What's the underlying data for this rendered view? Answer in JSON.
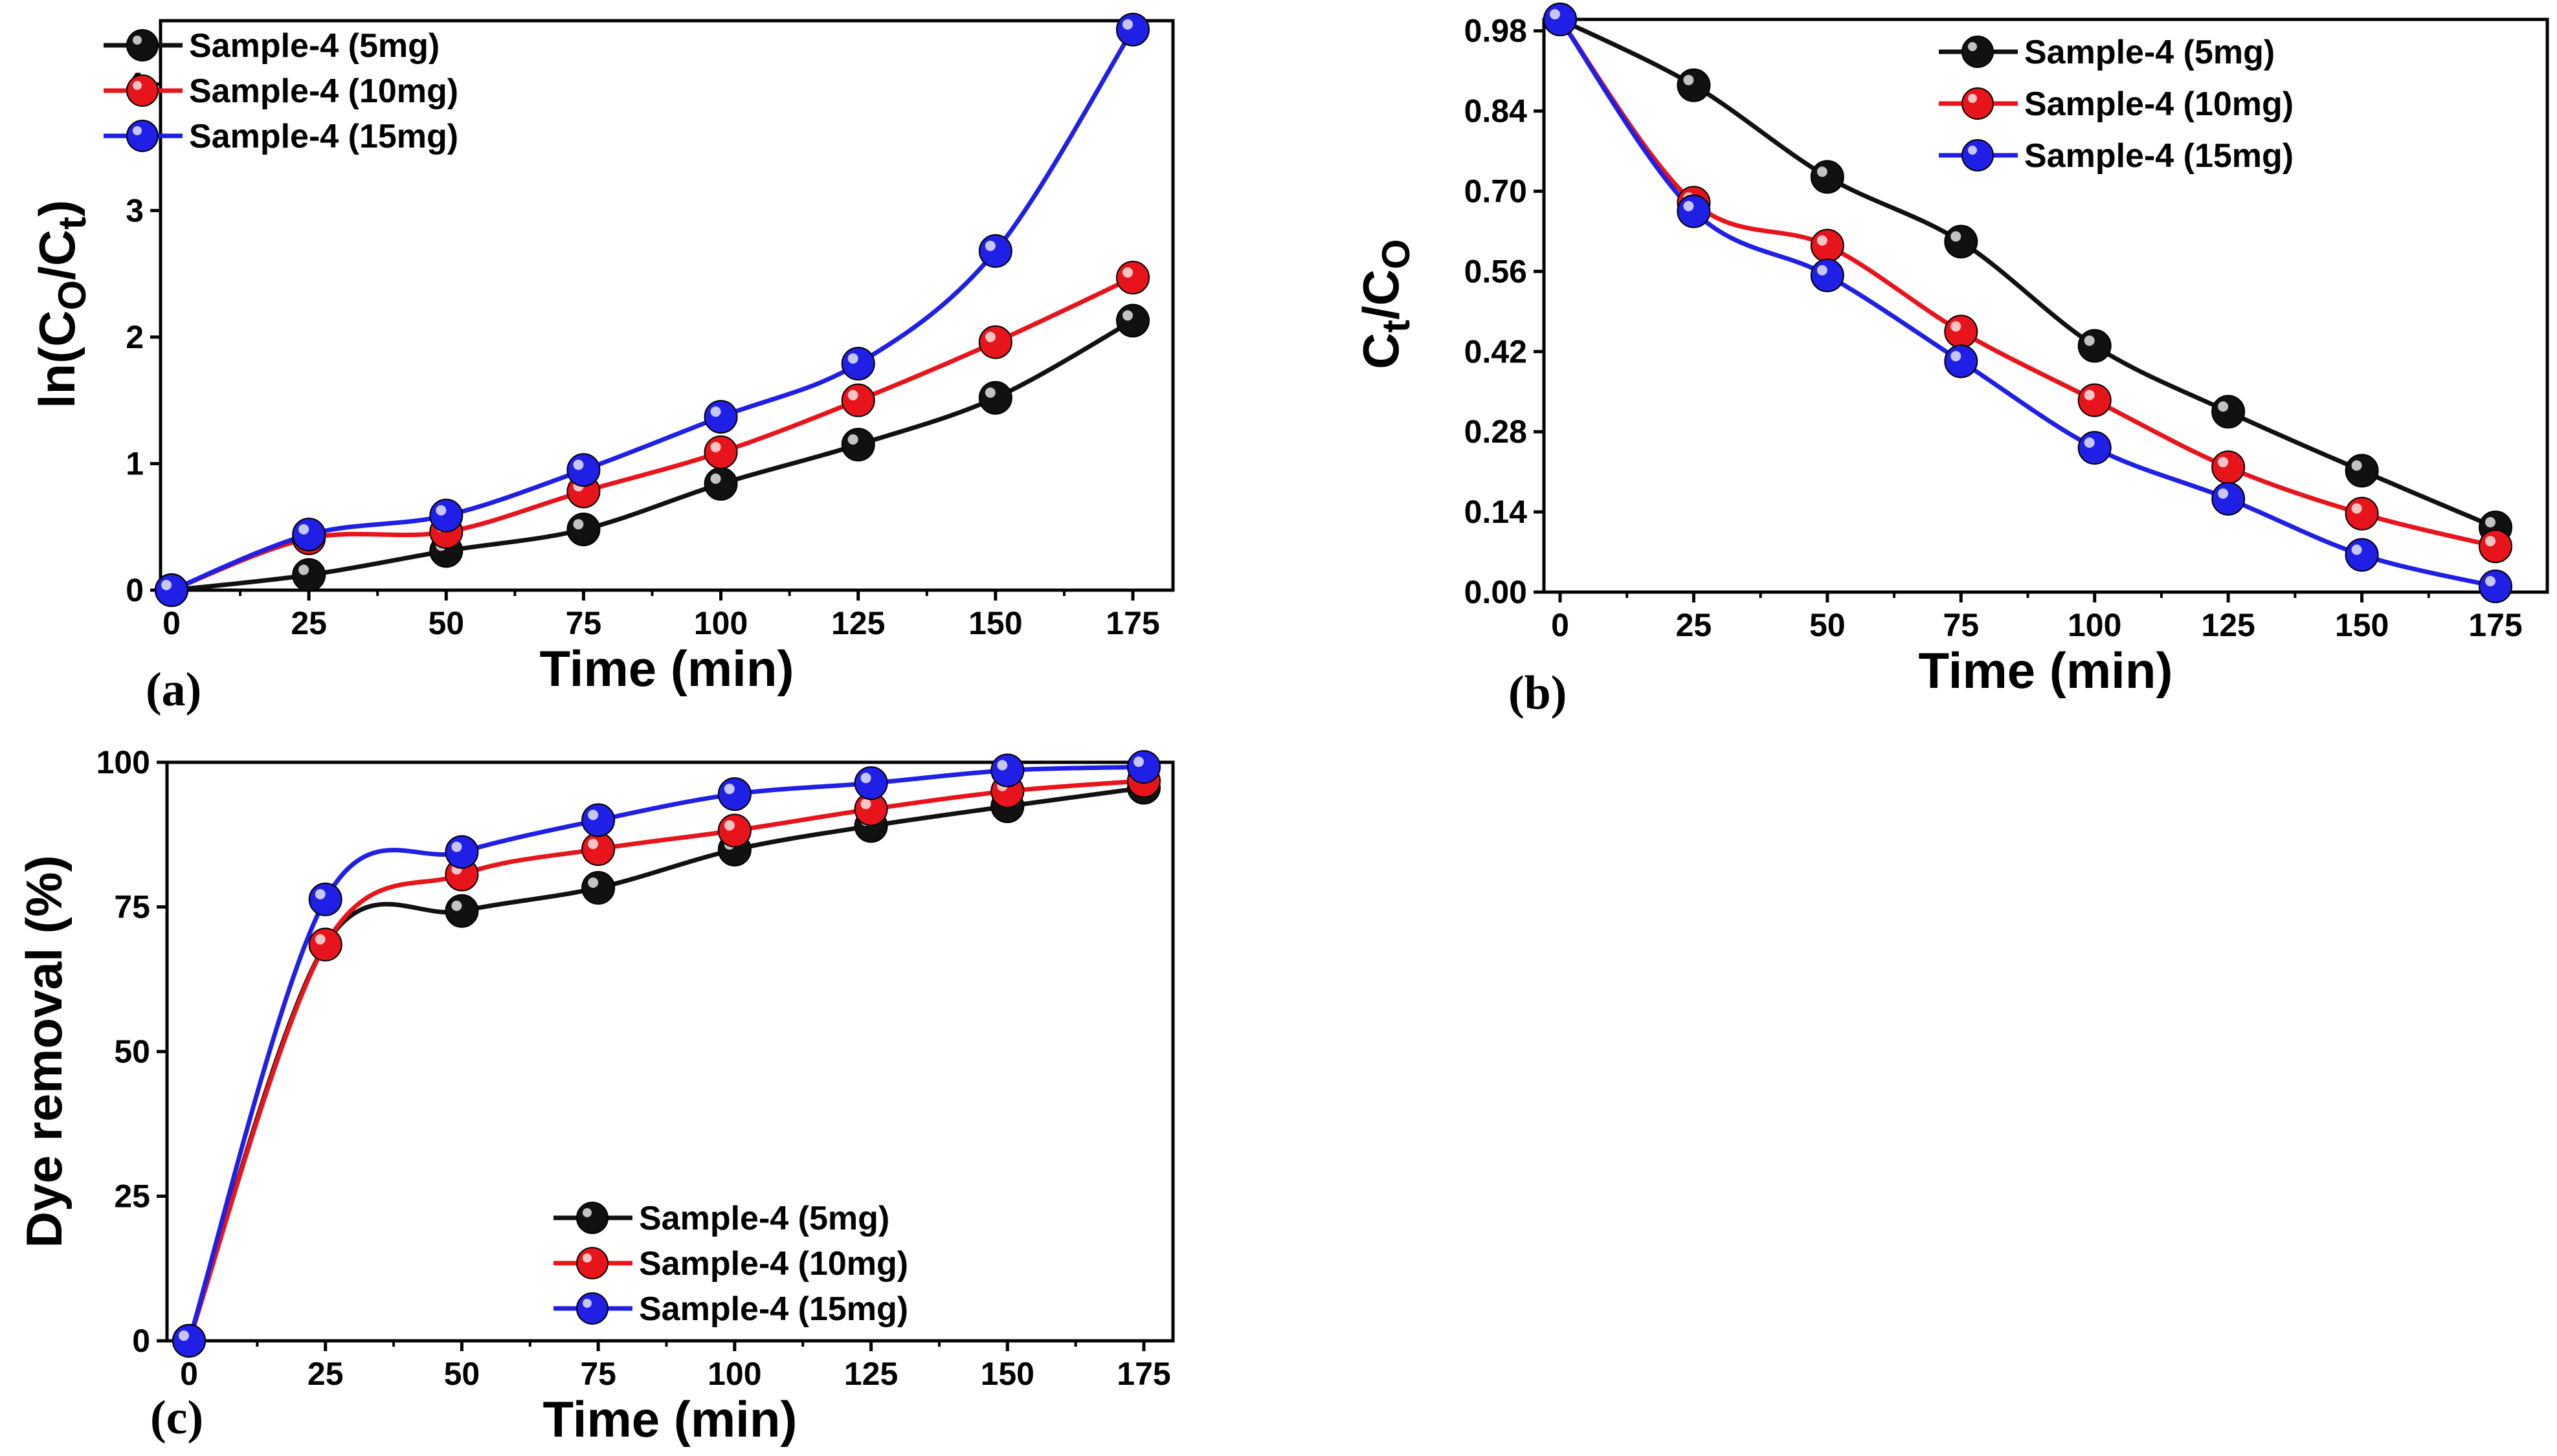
{
  "colors": {
    "s5": "#111111",
    "s10": "#e8141b",
    "s15": "#1f1fe6"
  },
  "chart_data": [
    {
      "type": "line",
      "panel": "(a)",
      "xlabel": "Time (min)",
      "ylabel": {
        "base": "ln(C",
        "sub1": "O",
        "mid": "/C",
        "sub2": "t",
        "end": ")"
      },
      "xlim": [
        0,
        175
      ],
      "ylim": [
        0,
        4.5
      ],
      "x_ticks": [
        "0",
        "25",
        "50",
        "75",
        "100",
        "125",
        "150",
        "175"
      ],
      "y_ticks": [
        "0",
        "1",
        "2",
        "3",
        "4"
      ],
      "legend_position": "top-left",
      "x": [
        0,
        25,
        50,
        75,
        100,
        125,
        150,
        175
      ],
      "series": [
        {
          "name": "Sample-4 (5mg)",
          "color_key": "s5",
          "values": [
            0,
            0.12,
            0.31,
            0.48,
            0.84,
            1.15,
            1.52,
            2.13
          ]
        },
        {
          "name": "Sample-4 (10mg)",
          "color_key": "s10",
          "values": [
            0,
            0.41,
            0.46,
            0.78,
            1.09,
            1.5,
            1.96,
            2.47
          ]
        },
        {
          "name": "Sample-4 (15mg)",
          "color_key": "s15",
          "values": [
            0,
            0.44,
            0.59,
            0.95,
            1.37,
            1.79,
            2.68,
            4.43
          ]
        }
      ]
    },
    {
      "type": "line",
      "panel": "(b)",
      "xlabel": "Time (min)",
      "ylabel": {
        "base": "C",
        "sub1": "t",
        "mid": "/C",
        "sub2": "O",
        "end": ""
      },
      "xlim": [
        0,
        175
      ],
      "ylim": [
        0,
        1.0
      ],
      "x_ticks": [
        "0",
        "25",
        "50",
        "75",
        "100",
        "125",
        "150",
        "175"
      ],
      "y_ticks": [
        "0.00",
        "0.14",
        "0.28",
        "0.42",
        "0.56",
        "0.70",
        "0.84",
        "0.98"
      ],
      "legend_position": "top-right",
      "x": [
        0,
        25,
        50,
        75,
        100,
        125,
        150,
        175
      ],
      "series": [
        {
          "name": "Sample-4 (5mg)",
          "color_key": "s5",
          "values": [
            1.0,
            0.885,
            0.725,
            0.612,
            0.43,
            0.315,
            0.212,
            0.113
          ]
        },
        {
          "name": "Sample-4 (10mg)",
          "color_key": "s10",
          "values": [
            1.0,
            0.68,
            0.605,
            0.455,
            0.335,
            0.218,
            0.137,
            0.08
          ]
        },
        {
          "name": "Sample-4 (15mg)",
          "color_key": "s15",
          "values": [
            1.0,
            0.665,
            0.553,
            0.403,
            0.252,
            0.163,
            0.065,
            0.01
          ]
        }
      ]
    },
    {
      "type": "line",
      "panel": "(c)",
      "xlabel": "Time (min)",
      "ylabel": {
        "base": "Dye removal (%)",
        "sub1": "",
        "mid": "",
        "sub2": "",
        "end": ""
      },
      "xlim": [
        0,
        175
      ],
      "ylim": [
        0,
        100
      ],
      "x_ticks": [
        "0",
        "25",
        "50",
        "75",
        "100",
        "125",
        "150",
        "175"
      ],
      "y_ticks": [
        "0",
        "25",
        "50",
        "75",
        "100"
      ],
      "legend_position": "bottom-right",
      "x": [
        0,
        25,
        50,
        75,
        100,
        125,
        150,
        175
      ],
      "series": [
        {
          "name": "Sample-4 (5mg)",
          "color_key": "s5",
          "values": [
            0,
            68.5,
            74.3,
            78.3,
            84.9,
            89.0,
            92.4,
            95.6
          ]
        },
        {
          "name": "Sample-4 (10mg)",
          "color_key": "s10",
          "values": [
            0,
            68.5,
            80.6,
            85.0,
            88.2,
            91.9,
            95.0,
            96.8
          ]
        },
        {
          "name": "Sample-4 (15mg)",
          "color_key": "s15",
          "values": [
            0,
            76.3,
            84.5,
            90.0,
            94.5,
            96.4,
            98.6,
            99.2
          ]
        }
      ]
    }
  ]
}
